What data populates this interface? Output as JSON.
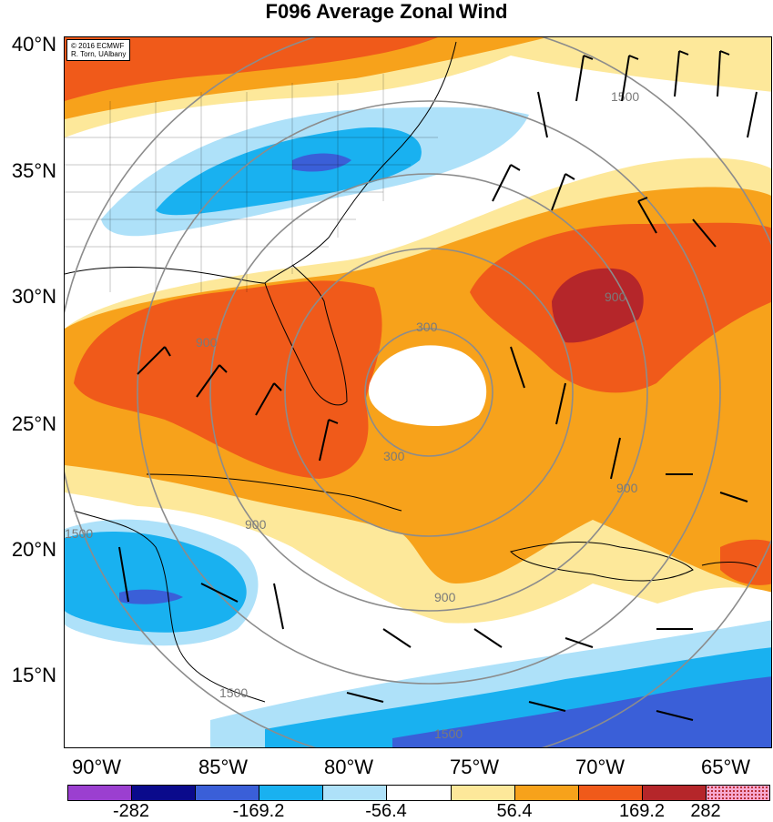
{
  "title": "F096 Average Zonal Wind",
  "copyright": {
    "line1": "© 2016 ECMWF",
    "line2": "R. Torn, UAlbany"
  },
  "lat_labels": [
    "40°N",
    "35°N",
    "30°N",
    "25°N",
    "20°N",
    "15°N"
  ],
  "lon_labels": [
    "90°W",
    "85°W",
    "80°W",
    "75°W",
    "70°W",
    "65°W"
  ],
  "colorbar": {
    "colors": [
      "#9b3fd0",
      "#0a0a8c",
      "#3a5fd8",
      "#19b1f0",
      "#aee1f9",
      "#ffffff",
      "#fde89a",
      "#f7a21b",
      "#f05a1a",
      "#b5262a",
      "#f7a8d0"
    ],
    "labels": [
      "-282",
      "-169.2",
      "-56.4",
      "56.4",
      "169.2",
      "282"
    ]
  },
  "contour_labels": [
    "1500",
    "900",
    "300",
    "900",
    "900",
    "300",
    "900",
    "900",
    "1500",
    "1500",
    "1500",
    "300"
  ]
}
